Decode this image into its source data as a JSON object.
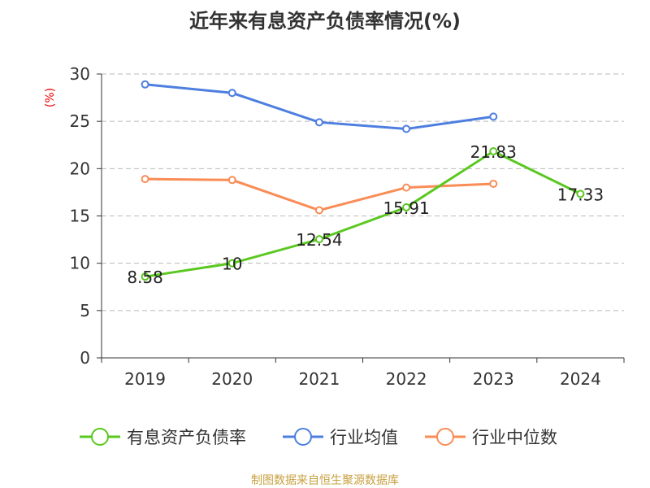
{
  "chart_data": {
    "type": "line",
    "title": "近年来有息资产负债率情况(%)",
    "ylabel": "(%)",
    "xlabel": "",
    "categories": [
      "2019",
      "2020",
      "2021",
      "2022",
      "2023",
      "2024"
    ],
    "ylim": [
      0,
      30
    ],
    "yticks": [
      0,
      5,
      10,
      15,
      20,
      25,
      30
    ],
    "grid": true,
    "legend_position": "bottom",
    "series": [
      {
        "name": "有息资产负债率",
        "color": "#5ac820",
        "values": [
          8.58,
          10,
          12.54,
          15.91,
          21.83,
          17.33
        ],
        "labels": [
          "8.58",
          "10",
          "12.54",
          "15.91",
          "21.83",
          "17.33"
        ]
      },
      {
        "name": "行业均值",
        "color": "#4e7fe0",
        "values": [
          28.9,
          28.0,
          24.9,
          24.2,
          25.5,
          null
        ]
      },
      {
        "name": "行业中位数",
        "color": "#fa8c56",
        "values": [
          18.9,
          18.8,
          15.6,
          18.0,
          18.4,
          null
        ]
      }
    ]
  },
  "source": "制图数据来自恒生聚源数据库"
}
